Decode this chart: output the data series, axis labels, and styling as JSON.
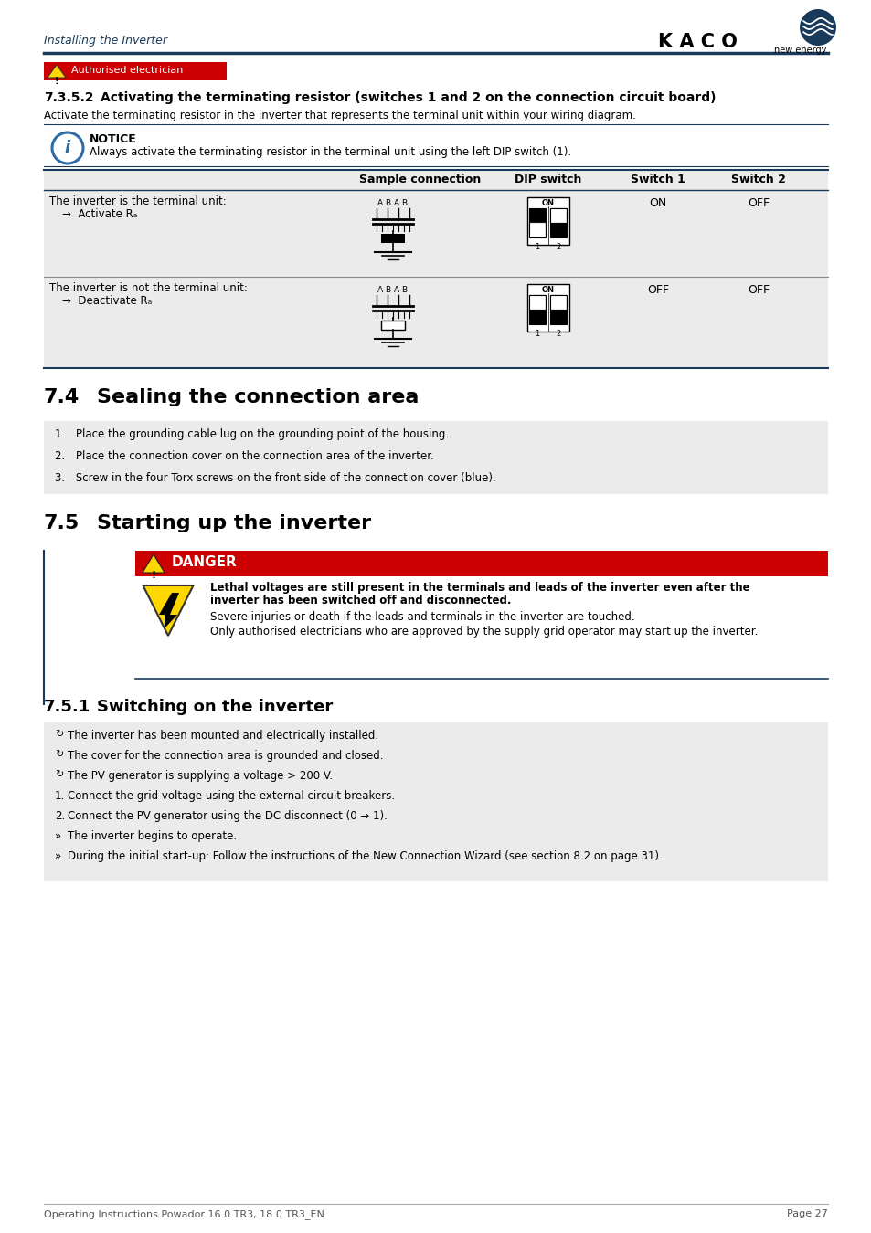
{
  "page_header_left": "Installing the Inverter",
  "page_header_right_text": "new energy.",
  "dark_blue": "#1a3a5c",
  "light_blue": "#2e6da4",
  "danger_red": "#CC0000",
  "auth_red": "#CC0000",
  "section_735_num": "7.3.5.2",
  "section_735_title": "Activating the terminating resistor (switches 1 and 2 on the connection circuit board)",
  "section_735_body": "Activate the terminating resistor in the inverter that represents the terminal unit within your wiring diagram.",
  "notice_text": "NOTICE",
  "notice_body": "Always activate the terminating resistor in the terminal unit using the left DIP switch (1).",
  "table_headers": [
    "Sample connection",
    "DIP switch",
    "Switch 1",
    "Switch 2"
  ],
  "table_row1_col1a": "The inverter is the terminal unit:",
  "table_row1_col1b": "Activate Rₐ",
  "table_row1_switch1": "ON",
  "table_row1_switch2": "OFF",
  "table_row2_col1a": "The inverter is not the terminal unit:",
  "table_row2_col1b": "Deactivate Rₐ",
  "table_row2_switch1": "OFF",
  "table_row2_switch2": "OFF",
  "section_74_num": "7.4",
  "section_74_title": "Sealing the connection area",
  "section_74_items": [
    "Place the grounding cable lug on the grounding point of the housing.",
    "Place the connection cover on the connection area of the inverter.",
    "Screw in the four Torx screws on the front side of the connection cover (blue)."
  ],
  "section_75_num": "7.5",
  "section_75_title": "Starting up the inverter",
  "danger_title": "DANGER",
  "danger_bold1": "Lethal voltages are still present in the terminals and leads of the inverter even after the",
  "danger_bold2": "inverter has been switched off and disconnected.",
  "danger_line1": "Severe injuries or death if the leads and terminals in the inverter are touched.",
  "danger_line2": "Only authorised electricians who are approved by the supply grid operator may start up the inverter.",
  "section_751_num": "7.5.1",
  "section_751_title": "Switching on the inverter",
  "prereq_items": [
    "The inverter has been mounted and electrically installed.",
    "The cover for the connection area is grounded and closed.",
    "The PV generator is supplying a voltage > 200 V."
  ],
  "step_items": [
    "Connect the grid voltage using the external circuit breakers.",
    "Connect the PV generator using the DC disconnect (0 → 1)."
  ],
  "result_items": [
    "The inverter begins to operate.",
    "During the initial start-up: Follow the instructions of the New Connection Wizard (see section 8.2 on page 31)."
  ],
  "footer_left": "Operating Instructions Powador 16.0 TR3, 18.0 TR3_EN",
  "footer_right": "Page 27",
  "bg_white": "#ffffff",
  "table_bg": "#ebebeb",
  "blue_header": "#1a3a5c"
}
